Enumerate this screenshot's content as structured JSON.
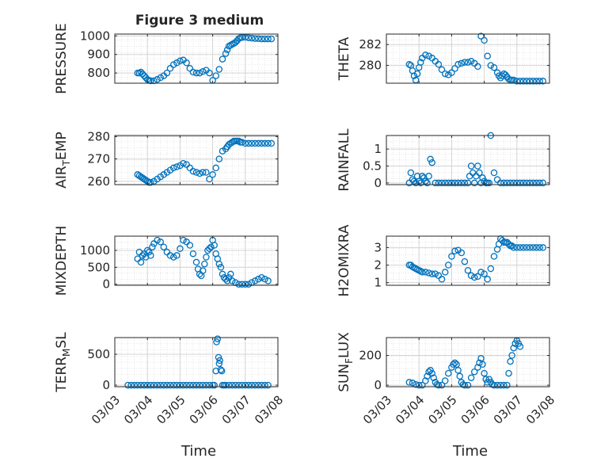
{
  "title": "Figure 3 medium",
  "xlabel": "Time",
  "xticks": [
    "03/03",
    "03/04",
    "03/05",
    "03/06",
    "03/07",
    "03/08"
  ],
  "colors": {
    "marker": "#0072bd",
    "grid": "#dedede",
    "axis": "#262626"
  },
  "chart_data": [
    {
      "type": "scatter",
      "ylabel": "PRESSURE",
      "ylabel_sub": "",
      "ylabel_tail": "",
      "ylim": [
        745,
        1010
      ],
      "yticks": [
        800,
        900,
        1000
      ],
      "xlim": [
        0,
        5
      ],
      "grid": true,
      "x": [
        0.7,
        0.75,
        0.8,
        0.85,
        0.9,
        0.95,
        1.0,
        1.05,
        1.1,
        1.2,
        1.3,
        1.4,
        1.5,
        1.6,
        1.7,
        1.8,
        1.9,
        2.0,
        2.1,
        2.2,
        2.3,
        2.4,
        2.5,
        2.6,
        2.7,
        2.8,
        2.9,
        3.0,
        3.1,
        3.2,
        3.3,
        3.4,
        3.45,
        3.5,
        3.55,
        3.6,
        3.65,
        3.7,
        3.75,
        3.8,
        3.85,
        3.9,
        4.0,
        4.1,
        4.2,
        4.3,
        4.4,
        4.5,
        4.6,
        4.7,
        4.8
      ],
      "y": [
        800,
        800,
        805,
        795,
        785,
        775,
        765,
        760,
        758,
        758,
        765,
        775,
        785,
        800,
        825,
        845,
        855,
        865,
        870,
        855,
        825,
        805,
        800,
        800,
        808,
        815,
        800,
        760,
        785,
        820,
        875,
        905,
        925,
        945,
        950,
        955,
        960,
        965,
        975,
        985,
        990,
        992,
        993,
        990,
        988,
        986,
        985,
        984,
        984,
        984,
        984
      ]
    },
    {
      "type": "scatter",
      "ylabel": "THETA",
      "ylabel_sub": "",
      "ylabel_tail": "",
      "ylim": [
        278.3,
        283.0
      ],
      "yticks": [
        280,
        282
      ],
      "xlim": [
        0,
        5
      ],
      "grid": true,
      "x": [
        0.7,
        0.75,
        0.8,
        0.85,
        0.9,
        0.95,
        1.0,
        1.05,
        1.1,
        1.2,
        1.3,
        1.4,
        1.5,
        1.6,
        1.7,
        1.8,
        1.9,
        2.0,
        2.1,
        2.2,
        2.3,
        2.4,
        2.5,
        2.6,
        2.7,
        2.8,
        2.9,
        3.0,
        3.1,
        3.2,
        3.3,
        3.4,
        3.45,
        3.5,
        3.55,
        3.6,
        3.65,
        3.7,
        3.75,
        3.8,
        3.85,
        3.9,
        4.0,
        4.1,
        4.2,
        4.3,
        4.4,
        4.5,
        4.6,
        4.7,
        4.8
      ],
      "y": [
        280.1,
        280.0,
        279.5,
        279.0,
        278.6,
        279.2,
        279.8,
        280.3,
        280.7,
        281.0,
        280.9,
        280.7,
        280.4,
        280.1,
        279.6,
        279.2,
        279.1,
        279.3,
        279.7,
        280.1,
        280.2,
        280.3,
        280.3,
        280.4,
        280.2,
        279.9,
        282.8,
        282.4,
        280.9,
        280.0,
        279.8,
        279.3,
        279.0,
        278.8,
        279.0,
        279.2,
        279.1,
        278.9,
        278.7,
        278.6,
        278.6,
        278.6,
        278.5,
        278.5,
        278.5,
        278.5,
        278.5,
        278.5,
        278.5,
        278.5,
        278.5
      ]
    },
    {
      "type": "scatter",
      "ylabel": "AIR",
      "ylabel_sub": "T",
      "ylabel_tail": "EMP",
      "ylim": [
        258.5,
        280.5
      ],
      "yticks": [
        260,
        270,
        280
      ],
      "xlim": [
        0,
        5
      ],
      "grid": true,
      "x": [
        0.7,
        0.75,
        0.8,
        0.85,
        0.9,
        0.95,
        1.0,
        1.05,
        1.1,
        1.2,
        1.3,
        1.4,
        1.5,
        1.6,
        1.7,
        1.8,
        1.9,
        2.0,
        2.1,
        2.2,
        2.3,
        2.4,
        2.5,
        2.6,
        2.7,
        2.8,
        2.9,
        3.0,
        3.1,
        3.2,
        3.3,
        3.4,
        3.45,
        3.5,
        3.55,
        3.6,
        3.65,
        3.7,
        3.75,
        3.8,
        3.85,
        3.9,
        4.0,
        4.1,
        4.2,
        4.3,
        4.4,
        4.5,
        4.6,
        4.7,
        4.8
      ],
      "y": [
        263,
        262.5,
        262,
        261.5,
        261,
        260.5,
        260,
        259.5,
        259.5,
        260,
        261,
        262,
        263,
        264,
        265,
        266,
        266.5,
        267,
        268,
        267.5,
        266,
        264.5,
        264,
        263.5,
        264,
        264,
        261,
        263,
        266,
        270,
        273.5,
        274.5,
        275.5,
        276.5,
        277,
        277.5,
        278,
        278,
        278,
        278,
        277.5,
        277.5,
        277,
        277,
        277,
        277,
        277,
        277,
        277,
        277,
        277
      ]
    },
    {
      "type": "scatter",
      "ylabel": "RAINFALL",
      "ylabel_sub": "",
      "ylabel_tail": "",
      "ylim": [
        -0.05,
        1.4
      ],
      "yticks": [
        0,
        0.5,
        1
      ],
      "xlim": [
        0,
        5
      ],
      "grid": true,
      "x": [
        0.7,
        0.75,
        0.8,
        0.85,
        0.9,
        0.95,
        1.0,
        1.05,
        1.1,
        1.15,
        1.2,
        1.25,
        1.3,
        1.35,
        1.4,
        1.5,
        1.6,
        1.7,
        1.8,
        1.9,
        2.0,
        2.1,
        2.2,
        2.3,
        2.4,
        2.5,
        2.55,
        2.6,
        2.65,
        2.7,
        2.75,
        2.8,
        2.85,
        2.9,
        2.95,
        3.0,
        3.05,
        3.1,
        3.15,
        3.2,
        3.3,
        3.4,
        3.5,
        3.6,
        3.7,
        3.8,
        3.9,
        4.0,
        4.1,
        4.2,
        4.3,
        4.4,
        4.5,
        4.6,
        4.7,
        4.8
      ],
      "y": [
        0,
        0.3,
        0.1,
        0.05,
        0,
        0.2,
        0.05,
        0,
        0.2,
        0.15,
        0.05,
        0,
        0.2,
        0.7,
        0.6,
        0,
        0,
        0,
        0,
        0,
        0,
        0,
        0,
        0,
        0,
        0,
        0.2,
        0.5,
        0.3,
        0,
        0.2,
        0.5,
        0.3,
        0,
        0.15,
        0.05,
        0,
        0,
        0,
        1.4,
        0.3,
        0.1,
        0,
        0,
        0,
        0,
        0,
        0,
        0,
        0,
        0,
        0,
        0,
        0,
        0,
        0
      ]
    },
    {
      "type": "scatter",
      "ylabel": "MIXDEPTH",
      "ylabel_sub": "",
      "ylabel_tail": "",
      "ylim": [
        -30,
        1420
      ],
      "yticks": [
        0,
        500,
        1000
      ],
      "xlim": [
        0,
        5
      ],
      "grid": true,
      "x": [
        0.7,
        0.75,
        0.8,
        0.85,
        0.9,
        0.95,
        1.0,
        1.05,
        1.1,
        1.15,
        1.2,
        1.3,
        1.4,
        1.5,
        1.6,
        1.7,
        1.8,
        1.9,
        2.0,
        2.1,
        2.2,
        2.3,
        2.4,
        2.5,
        2.55,
        2.6,
        2.65,
        2.7,
        2.75,
        2.8,
        2.85,
        2.9,
        2.95,
        3.0,
        3.05,
        3.1,
        3.15,
        3.2,
        3.25,
        3.3,
        3.35,
        3.4,
        3.45,
        3.5,
        3.55,
        3.6,
        3.7,
        3.8,
        3.9,
        4.0,
        4.1,
        4.2,
        4.3,
        4.4,
        4.5,
        4.6,
        4.7
      ],
      "y": [
        750,
        950,
        650,
        850,
        900,
        800,
        1000,
        950,
        850,
        1100,
        1200,
        1300,
        1250,
        1100,
        950,
        850,
        800,
        850,
        1050,
        1300,
        1250,
        1150,
        900,
        650,
        450,
        300,
        250,
        400,
        600,
        800,
        1000,
        1050,
        1100,
        1300,
        1150,
        900,
        750,
        600,
        500,
        300,
        200,
        150,
        100,
        200,
        300,
        100,
        50,
        0,
        0,
        0,
        0,
        50,
        100,
        150,
        200,
        150,
        100
      ]
    },
    {
      "type": "scatter",
      "ylabel": "H2OMIXRA",
      "ylabel_sub": "",
      "ylabel_tail": "",
      "ylim": [
        0.85,
        3.65
      ],
      "yticks": [
        1,
        2,
        3
      ],
      "xlim": [
        0,
        5
      ],
      "grid": true,
      "x": [
        0.7,
        0.75,
        0.8,
        0.85,
        0.9,
        0.95,
        1.0,
        1.05,
        1.1,
        1.2,
        1.3,
        1.4,
        1.5,
        1.6,
        1.7,
        1.8,
        1.9,
        2.0,
        2.1,
        2.2,
        2.3,
        2.4,
        2.5,
        2.6,
        2.7,
        2.8,
        2.9,
        3.0,
        3.1,
        3.2,
        3.3,
        3.4,
        3.45,
        3.5,
        3.55,
        3.6,
        3.65,
        3.7,
        3.75,
        3.8,
        3.85,
        3.9,
        4.0,
        4.1,
        4.2,
        4.3,
        4.4,
        4.5,
        4.6,
        4.7,
        4.8
      ],
      "y": [
        2.0,
        2.0,
        1.9,
        1.85,
        1.8,
        1.75,
        1.7,
        1.65,
        1.6,
        1.6,
        1.55,
        1.5,
        1.5,
        1.4,
        1.2,
        1.6,
        2.0,
        2.5,
        2.8,
        2.85,
        2.7,
        2.2,
        1.7,
        1.4,
        1.3,
        1.35,
        1.6,
        1.5,
        1.2,
        1.8,
        2.5,
        2.9,
        3.2,
        3.5,
        3.4,
        3.3,
        3.3,
        3.3,
        3.2,
        3.1,
        3.1,
        3.0,
        3.0,
        3.0,
        3.0,
        3.0,
        3.0,
        3.0,
        3.0,
        3.0,
        3.0
      ]
    },
    {
      "type": "scatter",
      "ylabel": "TERR",
      "ylabel_sub": "M",
      "ylabel_tail": "SL",
      "ylim": [
        -25,
        770
      ],
      "yticks": [
        0,
        500
      ],
      "xlim": [
        0,
        5
      ],
      "grid": true,
      "x": [
        0.4,
        0.5,
        0.6,
        0.7,
        0.8,
        0.9,
        1.0,
        1.1,
        1.2,
        1.3,
        1.4,
        1.5,
        1.6,
        1.7,
        1.8,
        1.9,
        2.0,
        2.1,
        2.2,
        2.3,
        2.4,
        2.5,
        2.6,
        2.7,
        2.8,
        2.9,
        3.0,
        3.05,
        3.1,
        3.12,
        3.15,
        3.18,
        3.2,
        3.22,
        3.25,
        3.28,
        3.3,
        3.35,
        3.4,
        3.5,
        3.6,
        3.7,
        3.8,
        3.9,
        4.0,
        4.1,
        4.2,
        4.3,
        4.4,
        4.5,
        4.6,
        4.7
      ],
      "y": [
        0,
        0,
        0,
        0,
        0,
        0,
        0,
        0,
        0,
        0,
        0,
        0,
        0,
        0,
        0,
        0,
        0,
        0,
        0,
        0,
        0,
        0,
        0,
        0,
        0,
        0,
        0,
        0,
        230,
        700,
        750,
        450,
        350,
        400,
        250,
        230,
        0,
        0,
        0,
        0,
        0,
        0,
        0,
        0,
        0,
        0,
        0,
        0,
        0,
        0,
        0,
        0
      ]
    },
    {
      "type": "scatter",
      "ylabel": "SUN",
      "ylabel_sub": "F",
      "ylabel_tail": "LUX",
      "ylim": [
        -10,
        320
      ],
      "yticks": [
        0,
        200
      ],
      "xlim": [
        0,
        5
      ],
      "grid": true,
      "x": [
        0.7,
        0.8,
        0.9,
        1.0,
        1.1,
        1.2,
        1.25,
        1.3,
        1.35,
        1.4,
        1.45,
        1.5,
        1.55,
        1.6,
        1.7,
        1.8,
        1.9,
        2.0,
        2.05,
        2.1,
        2.15,
        2.2,
        2.25,
        2.3,
        2.35,
        2.4,
        2.5,
        2.6,
        2.7,
        2.8,
        2.85,
        2.9,
        2.95,
        3.0,
        3.05,
        3.1,
        3.15,
        3.2,
        3.25,
        3.3,
        3.4,
        3.5,
        3.6,
        3.7,
        3.75,
        3.8,
        3.85,
        3.9,
        3.95,
        4.0,
        4.05,
        4.1
      ],
      "y": [
        20,
        15,
        5,
        0,
        0,
        30,
        60,
        90,
        100,
        80,
        50,
        20,
        5,
        0,
        0,
        30,
        80,
        120,
        140,
        150,
        140,
        100,
        60,
        20,
        5,
        0,
        0,
        50,
        90,
        120,
        150,
        180,
        140,
        80,
        40,
        20,
        40,
        20,
        5,
        0,
        0,
        0,
        0,
        0,
        80,
        160,
        200,
        250,
        280,
        300,
        280,
        260
      ]
    }
  ]
}
